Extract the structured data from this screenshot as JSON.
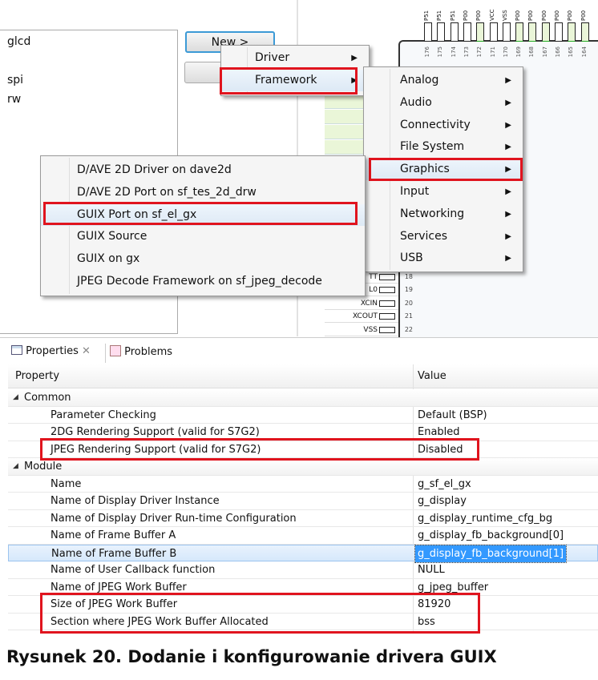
{
  "component_list": {
    "items": [
      "glcd",
      "spi",
      "rw"
    ]
  },
  "buttons": {
    "new": "New >",
    "remove": "Re"
  },
  "pin_diagram": {
    "top_pins": [
      {
        "label": "P51",
        "num": "176"
      },
      {
        "label": "P51",
        "num": "175"
      },
      {
        "label": "P51",
        "num": "174"
      },
      {
        "label": "P00",
        "num": "173"
      },
      {
        "label": "P00",
        "num": "172"
      },
      {
        "label": "VCC",
        "num": "171"
      },
      {
        "label": "VSS",
        "num": "170"
      },
      {
        "label": "P00",
        "num": "169"
      },
      {
        "label": "P00",
        "num": "168"
      },
      {
        "label": "P00",
        "num": "167"
      },
      {
        "label": "P00",
        "num": "166"
      },
      {
        "label": "P00",
        "num": "165"
      },
      {
        "label": "P00",
        "num": "164"
      }
    ],
    "side_pins": [
      {
        "label": "TT",
        "num": "18"
      },
      {
        "label": "L0",
        "num": "19"
      },
      {
        "label": "XCIN",
        "num": "20"
      },
      {
        "label": "XCOUT",
        "num": "21"
      },
      {
        "label": "VSS",
        "num": "22"
      }
    ]
  },
  "menu1": {
    "items": [
      {
        "label": "Driver"
      },
      {
        "label": "Framework"
      }
    ]
  },
  "menu2": {
    "items": [
      {
        "label": "Analog"
      },
      {
        "label": "Audio"
      },
      {
        "label": "Connectivity"
      },
      {
        "label": "File System"
      },
      {
        "label": "Graphics"
      },
      {
        "label": "Input"
      },
      {
        "label": "Networking"
      },
      {
        "label": "Services"
      },
      {
        "label": "USB"
      }
    ]
  },
  "menu3": {
    "items": [
      {
        "label": "D/AVE 2D Driver on dave2d"
      },
      {
        "label": "D/AVE 2D Port on sf_tes_2d_drw"
      },
      {
        "label": "GUIX Port on sf_el_gx"
      },
      {
        "label": "GUIX Source"
      },
      {
        "label": "GUIX on gx"
      },
      {
        "label": "JPEG Decode Framework on sf_jpeg_decode"
      }
    ]
  },
  "properties": {
    "tabs": [
      {
        "label": "Properties"
      },
      {
        "label": "Problems"
      }
    ],
    "headers": {
      "property": "Property",
      "value": "Value"
    },
    "rows": [
      {
        "property": "Common",
        "value": "",
        "group": true
      },
      {
        "property": "Parameter Checking",
        "value": "Default (BSP)"
      },
      {
        "property": "2DG Rendering Support (valid for S7G2)",
        "value": "Enabled"
      },
      {
        "property": "JPEG Rendering Support (valid for S7G2)",
        "value": "Disabled"
      },
      {
        "property": "Module",
        "value": "",
        "group": true
      },
      {
        "property": "Name",
        "value": "g_sf_el_gx"
      },
      {
        "property": "Name of Display Driver Instance",
        "value": "g_display"
      },
      {
        "property": "Name of Display Driver Run-time Configuration",
        "value": "g_display_runtime_cfg_bg"
      },
      {
        "property": "Name of Frame Buffer A",
        "value": "g_display_fb_background[0]"
      },
      {
        "property": "Name of Frame Buffer B",
        "value": "g_display_fb_background[1]",
        "selected": true
      },
      {
        "property": "Name of User Callback function",
        "value": "NULL"
      },
      {
        "property": "Name of JPEG Work Buffer",
        "value": "g_jpeg_buffer"
      },
      {
        "property": "Size of JPEG Work Buffer",
        "value": "81920"
      },
      {
        "property": "Section where JPEG Work Buffer Allocated",
        "value": "bss"
      }
    ]
  },
  "caption": "Rysunek 20. Dodanie i konfigurowanie drivera GUIX",
  "colors": {
    "highlight_box": "#e0141e",
    "selection": "#3399ff",
    "pin_green": "#eaf6d8"
  }
}
